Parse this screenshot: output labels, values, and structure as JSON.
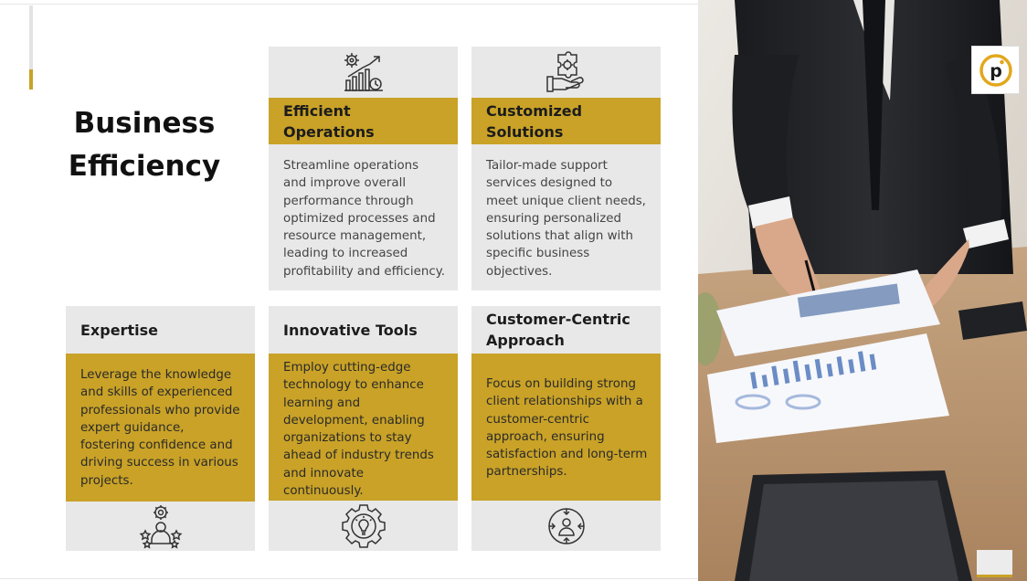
{
  "title": {
    "line1": "Business",
    "line2": "Efficiency"
  },
  "cards": {
    "efficient_operations": {
      "heading": "Efficient Operations",
      "body": "Streamline operations and improve overall performance through optimized processes and resource management, leading to increased profitability and efficiency.",
      "icon": "gear-chart-icon"
    },
    "customized_solutions": {
      "heading_line1": "Customized",
      "heading_line2": "Solutions",
      "body": "Tailor-made support services designed to meet unique client needs, ensuring personalized solutions that align with specific business objectives.",
      "icon": "hand-puzzle-icon"
    },
    "expertise": {
      "heading": "Expertise",
      "body": "Leverage the knowledge and skills of experienced professionals who provide expert guidance, fostering confidence and driving success in various projects.",
      "icon": "expert-stars-icon"
    },
    "innovative_tools": {
      "heading": "Innovative Tools",
      "body": "Employ cutting-edge technology to enhance learning and development, enabling organizations to stay ahead of industry trends and innovate continuously.",
      "icon": "gear-bulb-icon"
    },
    "customer_centric": {
      "heading_line1": "Customer-Centric",
      "heading_line2": "Approach",
      "body": "Focus on building strong client relationships with a customer-centric approach, ensuring satisfaction and long-term partnerships.",
      "icon": "customer-target-icon"
    }
  },
  "logo": {
    "letter": "p"
  },
  "colors": {
    "accent": "#c9a227",
    "tile_gray": "#e8e8e8",
    "heading_text": "#1c1c1c",
    "body_text": "#444444"
  }
}
